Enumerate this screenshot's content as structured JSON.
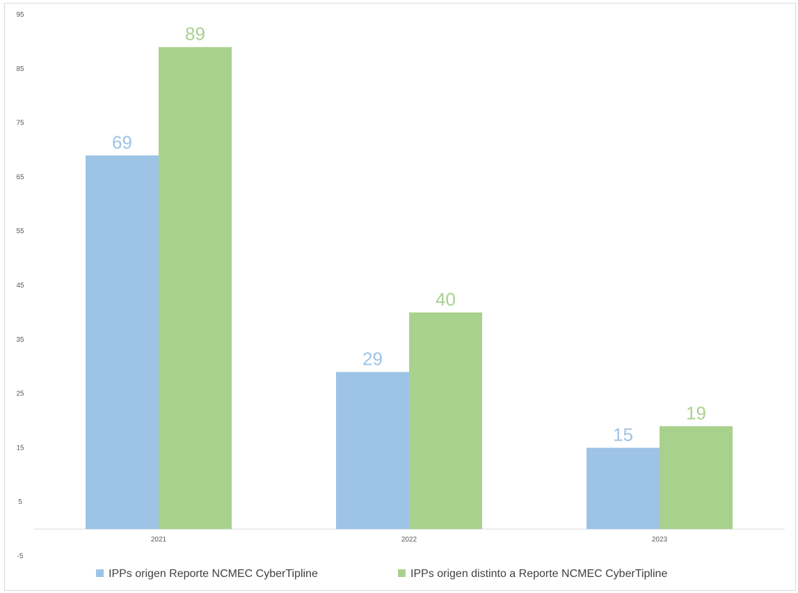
{
  "chart_data": {
    "type": "bar",
    "categories": [
      "2021",
      "2022",
      "2023"
    ],
    "series": [
      {
        "name": "IPPs origen Reporte NCMEC CyberTipline",
        "values": [
          69,
          29,
          15
        ],
        "color": "#9dc3e6"
      },
      {
        "name": "IPPs origen distinto a Reporte NCMEC CyberTipline",
        "values": [
          89,
          40,
          19
        ],
        "color": "#a9d18e"
      }
    ],
    "y_ticks": [
      95,
      85,
      75,
      65,
      55,
      45,
      35,
      25,
      15,
      5,
      -5
    ],
    "ylim": [
      -5,
      95
    ],
    "grid": false,
    "legend_position": "bottom"
  }
}
